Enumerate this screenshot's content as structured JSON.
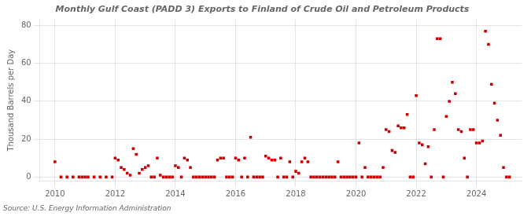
{
  "chart_data": {
    "type": "scatter",
    "title": "Monthly Gulf Coast (PADD 3) Exports to Finland of Crude Oil and Petroleum Products",
    "ylabel": "Thousand Barrels per Day",
    "annotations": [
      "Source: U.S. Energy Information Administration"
    ],
    "color": "#cc0000",
    "marker": "square",
    "grid": true,
    "xlim": [
      2009.5,
      2025.5
    ],
    "ylim": [
      -2,
      83
    ],
    "xticks": [
      2010,
      2012,
      2014,
      2016,
      2018,
      2020,
      2022,
      2024
    ],
    "yticks": [
      0,
      20,
      40,
      60,
      80
    ],
    "x": [
      2010.0,
      2010.2,
      2010.4,
      2010.6,
      2010.8,
      2010.9,
      2011.0,
      2011.1,
      2011.3,
      2011.5,
      2011.7,
      2011.9,
      2012.0,
      2012.1,
      2012.2,
      2012.3,
      2012.4,
      2012.5,
      2012.6,
      2012.7,
      2012.8,
      2012.9,
      2013.0,
      2013.1,
      2013.2,
      2013.3,
      2013.4,
      2013.5,
      2013.6,
      2013.7,
      2013.8,
      2013.9,
      2014.0,
      2014.1,
      2014.2,
      2014.3,
      2014.4,
      2014.5,
      2014.6,
      2014.7,
      2014.8,
      2014.9,
      2015.0,
      2015.1,
      2015.2,
      2015.3,
      2015.4,
      2015.5,
      2015.6,
      2015.7,
      2015.8,
      2015.9,
      2016.0,
      2016.1,
      2016.2,
      2016.3,
      2016.4,
      2016.5,
      2016.6,
      2016.7,
      2016.8,
      2016.9,
      2017.0,
      2017.1,
      2017.2,
      2017.3,
      2017.4,
      2017.5,
      2017.6,
      2017.7,
      2017.8,
      2017.9,
      2018.0,
      2018.1,
      2018.2,
      2018.3,
      2018.4,
      2018.5,
      2018.6,
      2018.7,
      2018.8,
      2018.9,
      2019.0,
      2019.1,
      2019.2,
      2019.3,
      2019.4,
      2019.5,
      2019.6,
      2019.7,
      2019.8,
      2019.9,
      2020.0,
      2020.1,
      2020.2,
      2020.3,
      2020.4,
      2020.5,
      2020.6,
      2020.7,
      2020.8,
      2020.9,
      2021.0,
      2021.1,
      2021.2,
      2021.3,
      2021.4,
      2021.5,
      2021.6,
      2021.7,
      2021.8,
      2021.9,
      2022.0,
      2022.1,
      2022.2,
      2022.3,
      2022.4,
      2022.5,
      2022.6,
      2022.7,
      2022.8,
      2022.9,
      2023.0,
      2023.1,
      2023.2,
      2023.3,
      2023.4,
      2023.5,
      2023.6,
      2023.7,
      2023.8,
      2023.9,
      2024.0,
      2024.1,
      2024.2,
      2024.3,
      2024.4,
      2024.5,
      2024.6,
      2024.7,
      2024.8,
      2024.9,
      2025.0,
      2025.1
    ],
    "values": [
      8,
      0,
      0,
      0,
      0,
      0,
      0,
      0,
      0,
      0,
      0,
      0,
      10,
      9,
      5,
      4,
      2,
      1,
      15,
      12,
      2,
      4,
      5,
      6,
      0,
      0,
      10,
      1,
      0,
      0,
      0,
      0,
      6,
      5,
      0,
      10,
      9,
      5,
      0,
      0,
      0,
      0,
      0,
      0,
      0,
      0,
      9,
      10,
      10,
      0,
      0,
      0,
      10,
      9,
      0,
      10,
      0,
      21,
      0,
      0,
      0,
      0,
      11,
      10,
      9,
      9,
      0,
      10,
      0,
      0,
      8,
      0,
      3,
      2,
      8,
      10,
      8,
      0,
      0,
      0,
      0,
      0,
      0,
      0,
      0,
      0,
      8,
      0,
      0,
      0,
      0,
      0,
      0,
      18,
      0,
      5,
      0,
      0,
      0,
      0,
      0,
      5,
      25,
      24,
      14,
      13,
      27,
      26,
      26,
      33,
      0,
      0,
      43,
      18,
      17,
      7,
      16,
      0,
      25,
      73,
      73,
      0,
      32,
      40,
      50,
      44,
      25,
      24,
      10,
      0,
      25,
      25,
      18,
      18,
      19,
      77,
      70,
      49,
      39,
      30,
      22,
      5,
      0,
      0
    ]
  }
}
